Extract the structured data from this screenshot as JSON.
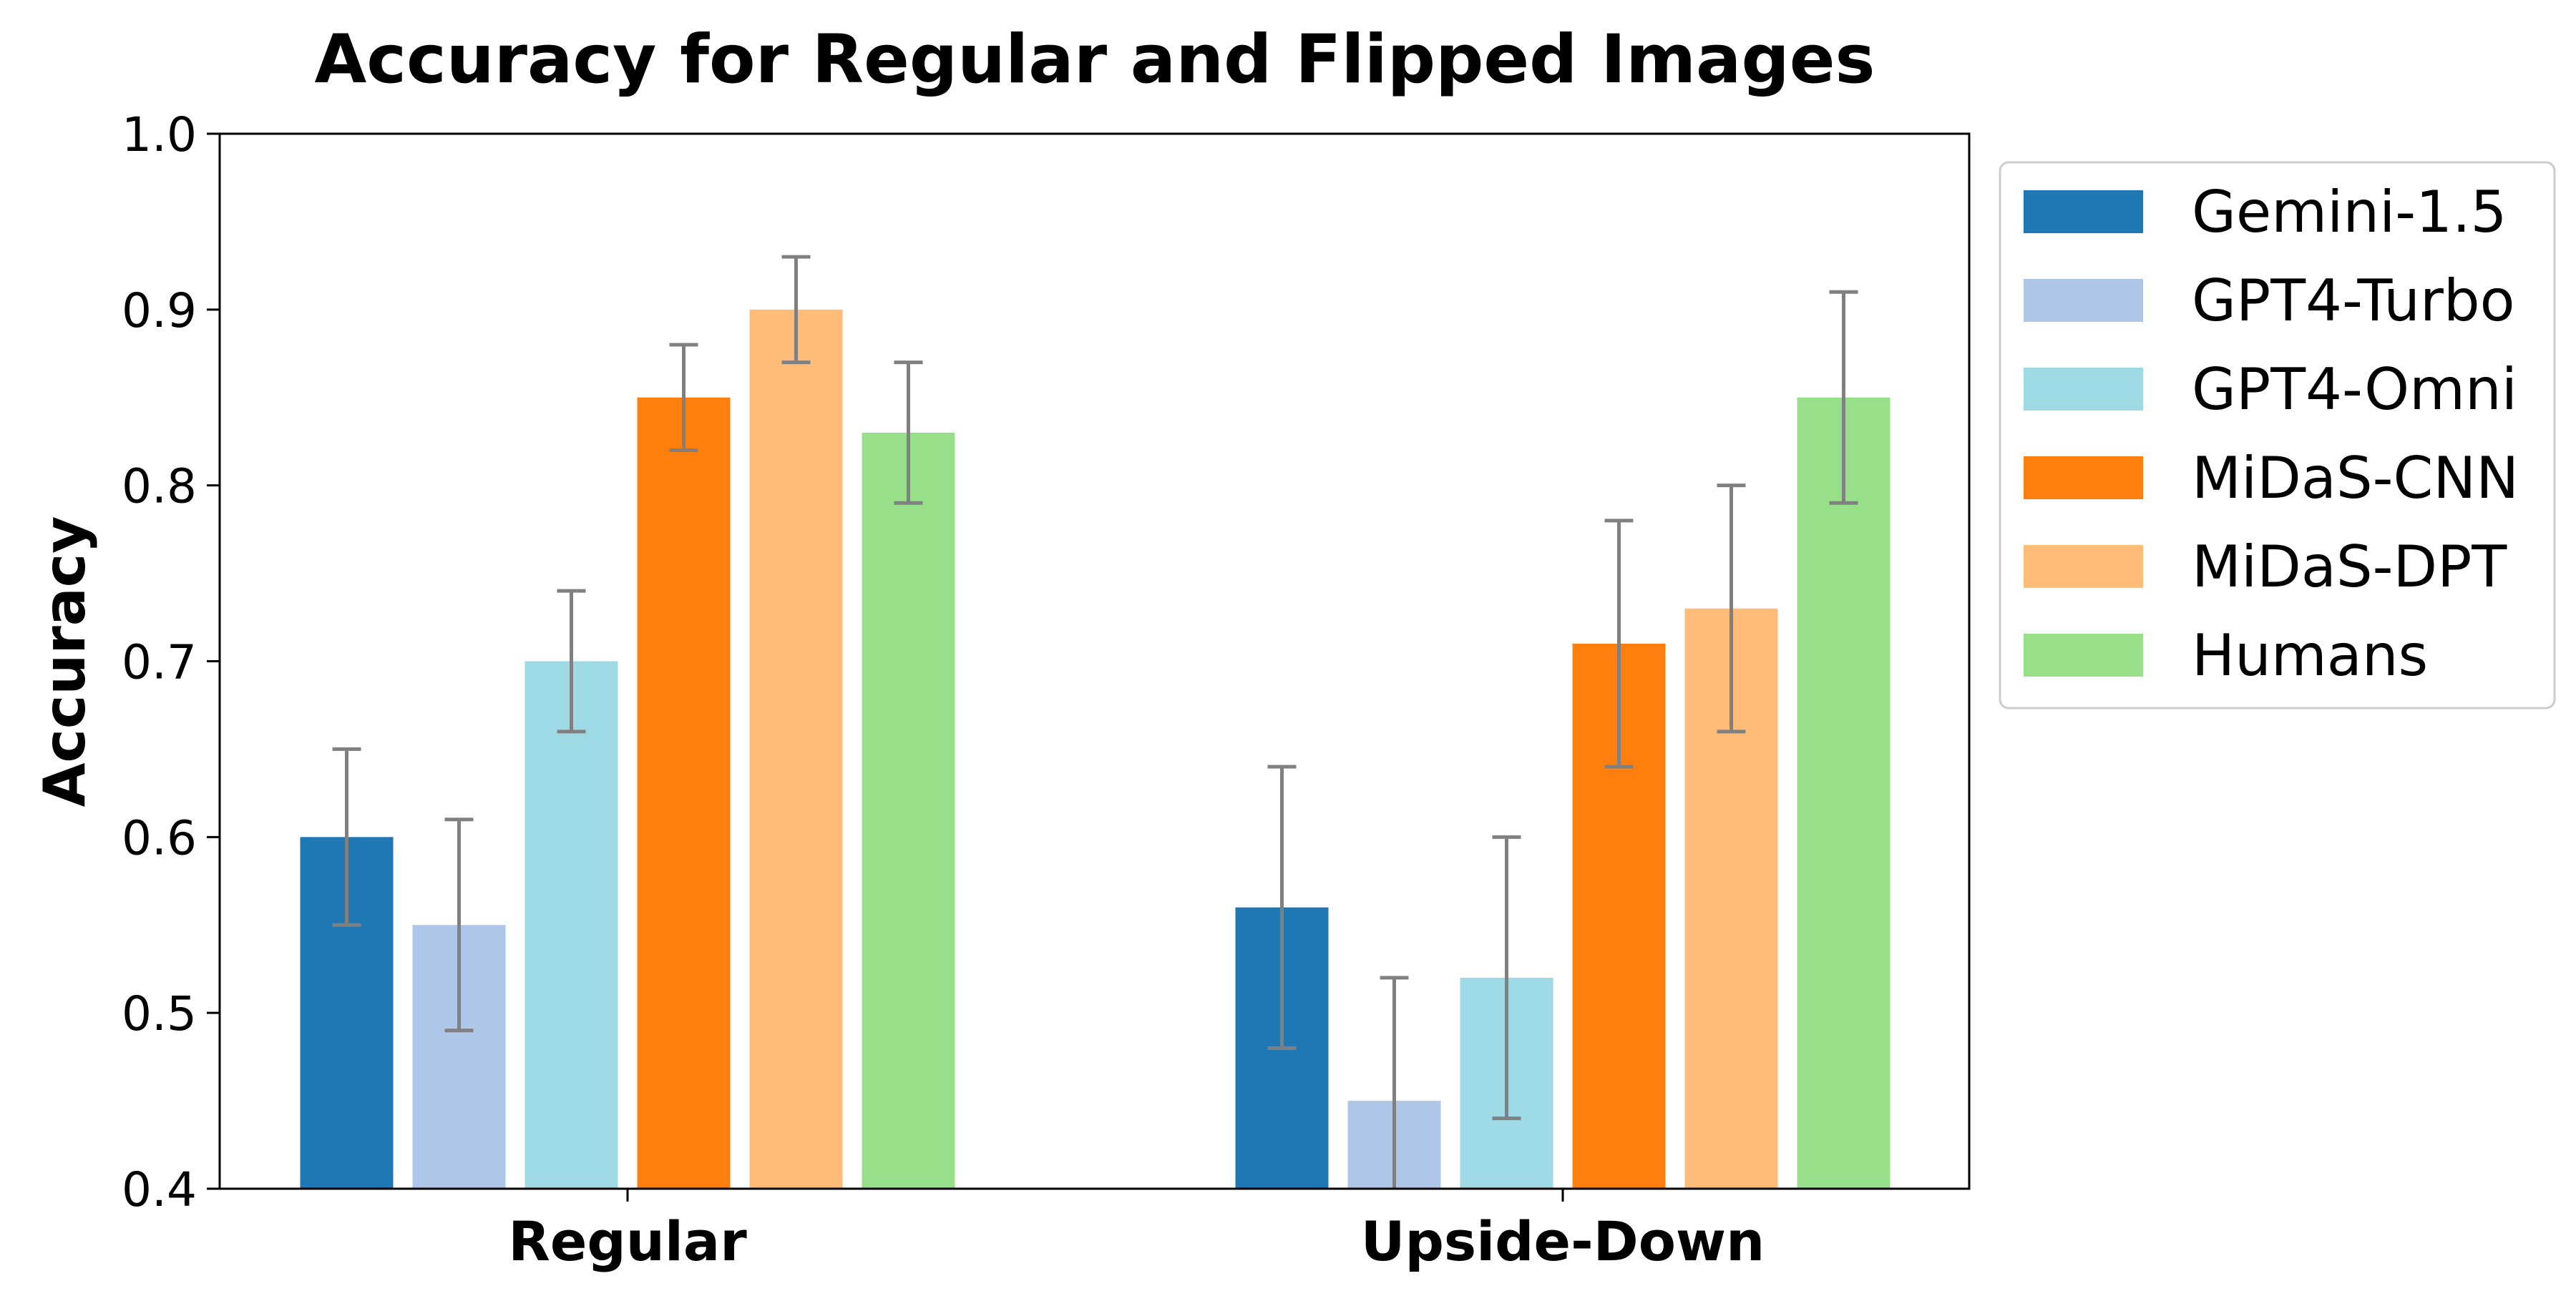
{
  "chart_data": {
    "type": "bar",
    "title": "Accuracy for Regular and Flipped Images",
    "xlabel": "",
    "ylabel": "Accuracy",
    "ylim": [
      0.4,
      1.0
    ],
    "yticks": [
      "0.4",
      "0.5",
      "0.6",
      "0.7",
      "0.8",
      "0.9",
      "1.0"
    ],
    "grid": false,
    "legend_position": "outside-right-top",
    "categories": [
      "Regular",
      "Upside-Down"
    ],
    "series": [
      {
        "name": "Gemini-1.5",
        "color": "#1f77b4",
        "values": [
          0.6,
          0.56
        ],
        "err_low": [
          0.55,
          0.48
        ],
        "err_high": [
          0.65,
          0.64
        ]
      },
      {
        "name": "GPT4-Turbo",
        "color": "#aec7e8",
        "values": [
          0.55,
          0.45
        ],
        "err_low": [
          0.49,
          0.39
        ],
        "err_high": [
          0.61,
          0.52
        ]
      },
      {
        "name": "GPT4-Omni",
        "color": "#9edae5",
        "values": [
          0.7,
          0.52
        ],
        "err_low": [
          0.66,
          0.44
        ],
        "err_high": [
          0.74,
          0.6
        ]
      },
      {
        "name": "MiDaS-CNN",
        "color": "#ff7f0e",
        "values": [
          0.85,
          0.71
        ],
        "err_low": [
          0.82,
          0.64
        ],
        "err_high": [
          0.88,
          0.78
        ]
      },
      {
        "name": "MiDaS-DPT",
        "color": "#ffbb78",
        "values": [
          0.9,
          0.73
        ],
        "err_low": [
          0.87,
          0.66
        ],
        "err_high": [
          0.93,
          0.8
        ]
      },
      {
        "name": "Humans",
        "color": "#98df8a",
        "values": [
          0.83,
          0.85
        ],
        "err_low": [
          0.79,
          0.79
        ],
        "err_high": [
          0.87,
          0.91
        ]
      }
    ],
    "error_bar_color": "#808080"
  }
}
